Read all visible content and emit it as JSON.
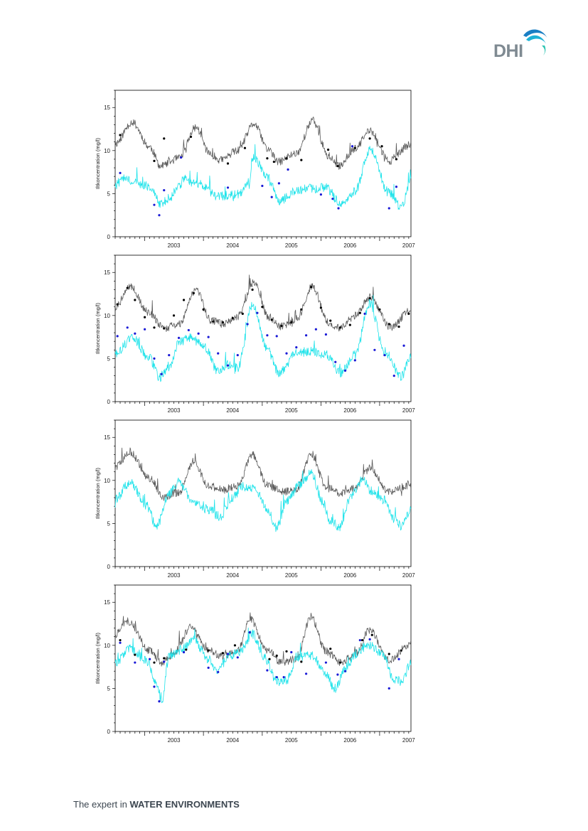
{
  "logo": {
    "text": "DHI",
    "icon": "dhi-wave-icon",
    "wave_colors": [
      "#1a7fc4",
      "#1fb2d6",
      "#2ec4b2"
    ]
  },
  "footer": {
    "prefix": "The expert in ",
    "emphasis": "WATER ENVIRONMENTS"
  },
  "colors": {
    "model_black": "#5a5a5a",
    "model_cyan": "#1ee3ea",
    "obs_black": "#000000",
    "obs_blue": "#1a1ad6"
  },
  "chart_data": [
    {
      "type": "line",
      "ylabel": "Iltkoncentration (mg/l)",
      "ylim": [
        0,
        17
      ],
      "yticks": [
        0,
        5,
        10,
        15
      ],
      "xlim": [
        "2002-07-01",
        "2007-07-15"
      ],
      "xtick_labels": [
        "2003",
        "2004",
        "2005",
        "2006",
        "2007"
      ],
      "series": [
        {
          "kind": "line",
          "color": "#5a5a5a",
          "x": [
            "2002-07-01",
            "2002-10-15",
            "2003-02-01",
            "2003-04-10",
            "2003-08-01",
            "2003-11-15",
            "2004-02-10",
            "2004-04-15",
            "2004-08-01",
            "2004-11-10",
            "2005-02-10",
            "2005-04-10",
            "2005-08-01",
            "2005-11-10",
            "2006-02-15",
            "2006-04-20",
            "2006-08-01",
            "2006-11-01",
            "2007-03-01",
            "2007-07-15"
          ],
          "y": [
            10.8,
            13.3,
            10.4,
            8.2,
            9.1,
            12.7,
            9.6,
            8.9,
            10.0,
            13.1,
            10.1,
            8.7,
            9.7,
            13.5,
            9.4,
            8.2,
            10.2,
            12.3,
            8.8,
            10.7
          ]
        },
        {
          "kind": "line",
          "color": "#1ee3ea",
          "x": [
            "2002-07-01",
            "2002-09-01",
            "2002-10-15",
            "2003-02-01",
            "2003-04-10",
            "2003-06-01",
            "2003-08-01",
            "2003-09-01",
            "2003-12-01",
            "2004-04-01",
            "2004-08-01",
            "2004-10-15",
            "2004-11-01",
            "2005-02-10",
            "2005-04-20",
            "2005-08-01",
            "2005-11-01",
            "2006-02-01",
            "2006-05-01",
            "2006-08-01",
            "2006-11-01",
            "2007-03-01",
            "2007-05-15",
            "2007-07-15"
          ],
          "y": [
            6.0,
            7.0,
            6.5,
            5.8,
            3.8,
            4.4,
            5.8,
            6.7,
            6.1,
            4.7,
            5.0,
            6.0,
            9.3,
            6.8,
            4.2,
            5.4,
            5.6,
            5.7,
            3.9,
            5.3,
            10.1,
            5.1,
            3.4,
            6.4
          ]
        },
        {
          "kind": "points",
          "color": "#000000",
          "x": [
            "2002-08-01",
            "2003-03-01",
            "2003-05-01",
            "2003-10-15",
            "2004-06-01",
            "2004-09-15",
            "2005-02-01",
            "2005-03-15",
            "2005-06-01",
            "2005-09-01",
            "2006-02-15",
            "2006-04-15",
            "2006-08-01",
            "2006-11-01",
            "2007-01-15",
            "2007-04-15"
          ],
          "y": [
            11.8,
            8.8,
            11.4,
            11.6,
            8.5,
            10.3,
            9.1,
            8.7,
            9.1,
            8.9,
            10.1,
            8.2,
            10.3,
            11.4,
            10.5,
            9.0
          ]
        },
        {
          "kind": "points",
          "color": "#1a1ad6",
          "x": [
            "2002-08-01",
            "2003-03-01",
            "2003-04-01",
            "2003-05-01",
            "2003-08-15",
            "2004-06-01",
            "2005-01-01",
            "2005-03-01",
            "2005-04-15",
            "2005-06-10",
            "2006-01-01",
            "2006-03-15",
            "2006-04-20",
            "2006-07-15",
            "2007-03-01",
            "2007-04-15"
          ],
          "y": [
            7.4,
            3.7,
            2.5,
            5.4,
            9.2,
            5.7,
            5.9,
            4.6,
            6.2,
            7.8,
            4.9,
            4.4,
            3.3,
            10.5,
            3.3,
            5.8
          ]
        }
      ]
    },
    {
      "type": "line",
      "ylabel": "Iltkoncentration (mg/l)",
      "ylim": [
        0,
        17
      ],
      "yticks": [
        0,
        5,
        10,
        15
      ],
      "xlim": [
        "2002-07-01",
        "2007-07-15"
      ],
      "xtick_labels": [
        "2003",
        "2004",
        "2005",
        "2006",
        "2007"
      ],
      "series": [
        {
          "kind": "line",
          "color": "#5a5a5a",
          "x": [
            "2002-07-01",
            "2002-10-01",
            "2003-02-01",
            "2003-05-01",
            "2003-08-01",
            "2003-11-15",
            "2004-02-15",
            "2004-05-01",
            "2004-08-01",
            "2004-11-10",
            "2005-02-10",
            "2005-05-01",
            "2005-08-01",
            "2005-11-10",
            "2006-02-15",
            "2006-05-01",
            "2006-08-01",
            "2006-11-01",
            "2007-03-15",
            "2007-07-15"
          ],
          "y": [
            11.0,
            13.3,
            10.2,
            8.5,
            9.0,
            13.0,
            9.5,
            9.0,
            9.9,
            13.8,
            9.8,
            8.7,
            9.6,
            13.4,
            9.2,
            8.5,
            10.0,
            12.1,
            8.6,
            10.8
          ]
        },
        {
          "kind": "line",
          "color": "#1ee3ea",
          "x": [
            "2002-07-01",
            "2002-10-15",
            "2003-02-01",
            "2003-04-01",
            "2003-06-01",
            "2003-08-01",
            "2003-10-01",
            "2004-01-01",
            "2004-04-01",
            "2004-06-01",
            "2004-08-01",
            "2004-11-01",
            "2005-02-01",
            "2005-04-15",
            "2005-08-01",
            "2005-11-01",
            "2006-02-01",
            "2006-05-01",
            "2006-08-01",
            "2006-11-01",
            "2007-02-01",
            "2007-05-15",
            "2007-07-15"
          ],
          "y": [
            5.6,
            7.4,
            5.0,
            2.8,
            4.0,
            6.8,
            7.5,
            6.6,
            3.5,
            4.3,
            4.0,
            11.2,
            6.1,
            3.3,
            5.6,
            5.9,
            5.5,
            3.4,
            5.4,
            11.4,
            5.8,
            2.9,
            5.4
          ]
        },
        {
          "kind": "points",
          "color": "#000000",
          "x": [
            "2002-07-15",
            "2002-09-15",
            "2002-11-01",
            "2003-01-01",
            "2003-03-01",
            "2003-05-01",
            "2003-07-01",
            "2003-09-01",
            "2003-11-01",
            "2004-01-01",
            "2004-03-01",
            "2004-05-01",
            "2004-07-01",
            "2004-09-01",
            "2004-11-01",
            "2005-01-01",
            "2005-03-01",
            "2005-05-01",
            "2005-07-01",
            "2005-09-01",
            "2005-11-01",
            "2006-01-01",
            "2006-03-01",
            "2006-05-01",
            "2006-07-01",
            "2006-09-01",
            "2006-11-01",
            "2007-01-01",
            "2007-03-01",
            "2007-05-01",
            "2007-07-01"
          ],
          "y": [
            11.3,
            13.2,
            11.8,
            9.8,
            8.6,
            8.5,
            10.0,
            11.8,
            12.6,
            10.7,
            9.3,
            9.2,
            9.7,
            10.2,
            13.0,
            11.0,
            9.5,
            8.8,
            9.2,
            10.7,
            13.3,
            10.9,
            9.4,
            8.6,
            8.9,
            10.3,
            12.0,
            10.7,
            9.0,
            8.7,
            10.2
          ]
        },
        {
          "kind": "points",
          "color": "#1a1ad6",
          "x": [
            "2002-07-15",
            "2002-09-15",
            "2002-11-01",
            "2003-01-01",
            "2003-03-01",
            "2003-04-15",
            "2003-06-01",
            "2003-08-01",
            "2003-10-01",
            "2003-12-01",
            "2004-02-01",
            "2004-04-01",
            "2004-06-01",
            "2004-08-01",
            "2004-10-01",
            "2004-12-01",
            "2005-02-01",
            "2005-04-01",
            "2005-06-01",
            "2005-08-01",
            "2005-10-01",
            "2005-12-01",
            "2006-02-01",
            "2006-04-01",
            "2006-06-01",
            "2006-08-01",
            "2006-10-01",
            "2006-12-01",
            "2007-02-01",
            "2007-04-01",
            "2007-06-01"
          ],
          "y": [
            7.6,
            8.6,
            7.9,
            8.4,
            5.0,
            3.2,
            5.4,
            7.4,
            8.3,
            7.9,
            7.5,
            5.6,
            4.2,
            5.4,
            9.0,
            10.3,
            7.7,
            7.6,
            5.6,
            6.3,
            7.7,
            8.4,
            7.8,
            4.6,
            3.6,
            4.8,
            10.2,
            6.0,
            5.4,
            3.0,
            6.5
          ]
        }
      ]
    },
    {
      "type": "line",
      "ylabel": "Iltkoncentration (mg/l)",
      "ylim": [
        0,
        17
      ],
      "yticks": [
        0,
        5,
        10,
        15
      ],
      "xlim": [
        "2002-07-01",
        "2007-07-15"
      ],
      "xtick_labels": [
        "2003",
        "2004",
        "2005",
        "2006",
        "2007"
      ],
      "series": [
        {
          "kind": "line",
          "color": "#5a5a5a",
          "x": [
            "2002-07-01",
            "2002-10-01",
            "2003-02-01",
            "2003-05-01",
            "2003-08-01",
            "2003-11-01",
            "2004-02-01",
            "2004-05-01",
            "2004-08-01",
            "2004-11-01",
            "2005-02-01",
            "2005-05-01",
            "2005-08-01",
            "2005-11-01",
            "2006-02-01",
            "2006-05-01",
            "2006-08-01",
            "2006-11-01",
            "2007-03-01",
            "2007-07-15"
          ],
          "y": [
            11.5,
            13.2,
            10.2,
            8.1,
            8.6,
            12.2,
            9.4,
            8.9,
            9.4,
            13.0,
            9.5,
            8.7,
            8.8,
            13.1,
            9.3,
            8.5,
            9.1,
            11.4,
            8.7,
            9.5
          ]
        },
        {
          "kind": "line",
          "color": "#1ee3ea",
          "x": [
            "2002-07-01",
            "2002-10-01",
            "2003-01-15",
            "2003-03-15",
            "2003-06-01",
            "2003-08-01",
            "2003-11-01",
            "2004-02-01",
            "2004-04-15",
            "2004-07-01",
            "2004-09-01",
            "2004-11-15",
            "2005-02-01",
            "2005-04-01",
            "2005-06-01",
            "2005-08-15",
            "2005-11-01",
            "2006-01-15",
            "2006-03-01",
            "2006-05-01",
            "2006-07-01",
            "2006-09-15",
            "2006-11-15",
            "2007-02-01",
            "2007-04-01",
            "2007-05-15",
            "2007-07-15"
          ],
          "y": [
            7.8,
            9.8,
            7.0,
            4.6,
            8.4,
            9.8,
            7.5,
            6.6,
            5.8,
            8.0,
            9.3,
            9.0,
            6.8,
            4.5,
            7.5,
            9.4,
            10.9,
            7.4,
            5.3,
            4.6,
            8.0,
            10.0,
            8.7,
            7.7,
            5.5,
            4.7,
            6.5
          ]
        }
      ]
    },
    {
      "type": "line",
      "ylabel": "Iltkoncentration (mg/l)",
      "ylim": [
        0,
        17
      ],
      "yticks": [
        0,
        5,
        10,
        15
      ],
      "xlim": [
        "2002-07-01",
        "2007-07-15"
      ],
      "xtick_labels": [
        "2003",
        "2004",
        "2005",
        "2006",
        "2007"
      ],
      "series": [
        {
          "kind": "line",
          "color": "#5a5a5a",
          "x": [
            "2002-07-01",
            "2002-09-15",
            "2003-02-01",
            "2003-04-15",
            "2003-07-01",
            "2003-10-15",
            "2004-02-01",
            "2004-05-01",
            "2004-08-01",
            "2004-10-15",
            "2005-02-01",
            "2005-05-01",
            "2005-08-01",
            "2005-11-01",
            "2006-02-01",
            "2006-05-01",
            "2006-08-01",
            "2006-11-01",
            "2007-03-01",
            "2007-07-15"
          ],
          "y": [
            11.2,
            12.8,
            9.4,
            8.0,
            9.0,
            12.1,
            9.4,
            8.7,
            9.3,
            13.1,
            9.5,
            8.0,
            8.4,
            13.3,
            9.3,
            8.0,
            9.0,
            11.8,
            8.3,
            10.2
          ]
        },
        {
          "kind": "line",
          "color": "#1ee3ea",
          "x": [
            "2002-07-01",
            "2002-10-01",
            "2003-01-15",
            "2003-03-15",
            "2003-04-20",
            "2003-06-01",
            "2003-08-15",
            "2003-11-01",
            "2004-02-01",
            "2004-04-01",
            "2004-06-01",
            "2004-08-15",
            "2004-11-01",
            "2005-01-15",
            "2005-04-01",
            "2005-06-01",
            "2005-08-15",
            "2005-11-15",
            "2006-01-15",
            "2006-04-01",
            "2006-06-01",
            "2006-08-15",
            "2006-10-15",
            "2007-01-15",
            "2007-04-01",
            "2007-05-15",
            "2007-07-15"
          ],
          "y": [
            8.0,
            9.6,
            8.2,
            5.6,
            3.8,
            8.8,
            9.5,
            10.6,
            8.4,
            7.0,
            8.6,
            9.3,
            11.3,
            8.5,
            5.8,
            6.0,
            8.7,
            8.8,
            7.0,
            5.0,
            7.4,
            9.1,
            10.1,
            9.1,
            6.1,
            5.8,
            7.8
          ]
        },
        {
          "kind": "points",
          "color": "#000000",
          "x": [
            "2002-08-01",
            "2002-11-01",
            "2003-03-01",
            "2003-05-01",
            "2003-09-15",
            "2004-02-01",
            "2004-05-01",
            "2004-07-15",
            "2004-10-15",
            "2005-02-15",
            "2005-04-01",
            "2005-06-01",
            "2005-09-01",
            "2006-03-01",
            "2006-05-01",
            "2006-09-15",
            "2006-11-15",
            "2007-03-01",
            "2007-05-15"
          ],
          "y": [
            10.6,
            8.9,
            8.0,
            8.5,
            9.5,
            9.4,
            9.1,
            10.0,
            11.5,
            8.4,
            8.8,
            9.3,
            8.1,
            9.6,
            8.0,
            10.6,
            11.2,
            9.0,
            9.4
          ]
        },
        {
          "kind": "points",
          "color": "#1a1ad6",
          "x": [
            "2002-08-01",
            "2002-11-01",
            "2003-02-01",
            "2003-03-01",
            "2003-04-01",
            "2003-05-01",
            "2003-09-01",
            "2004-02-01",
            "2004-04-01",
            "2004-06-01",
            "2004-08-01",
            "2004-10-15",
            "2005-02-01",
            "2005-04-01",
            "2005-05-15",
            "2005-07-01",
            "2005-10-01",
            "2006-02-01",
            "2006-04-15",
            "2006-06-01",
            "2006-09-01",
            "2006-11-01",
            "2007-03-01",
            "2007-05-01"
          ],
          "y": [
            10.3,
            8.0,
            8.4,
            5.2,
            3.5,
            8.1,
            9.2,
            7.4,
            6.9,
            9.0,
            8.6,
            11.5,
            7.1,
            6.3,
            6.3,
            9.2,
            6.7,
            8.0,
            6.6,
            7.0,
            10.6,
            10.7,
            5.0,
            8.4
          ]
        }
      ]
    }
  ]
}
